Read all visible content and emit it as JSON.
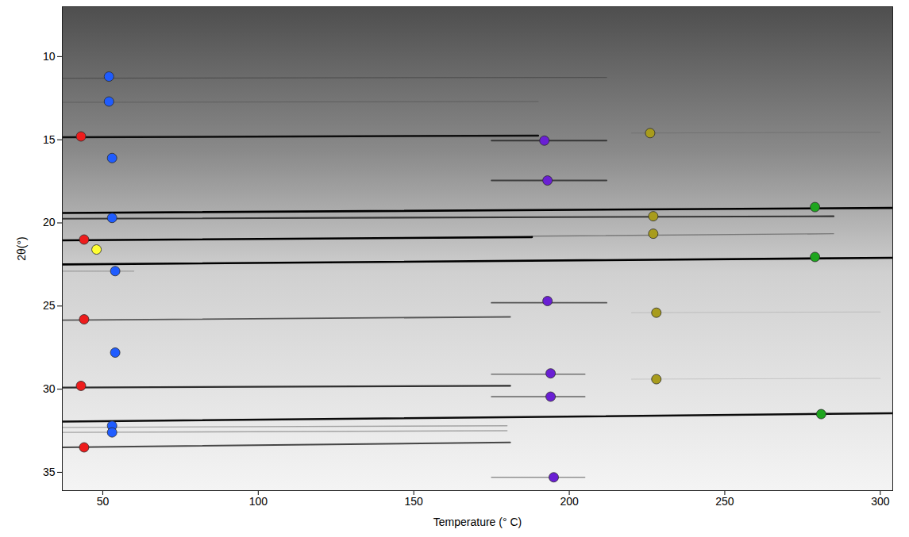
{
  "chart_data": {
    "type": "scatter",
    "xlabel": "Temperature (° C)",
    "ylabel": "2θ(°)",
    "xlim": [
      37,
      304
    ],
    "ylim": [
      36.1,
      7
    ],
    "xticks": [
      50,
      100,
      150,
      200,
      250,
      300
    ],
    "yticks": [
      10,
      15,
      20,
      25,
      30,
      35
    ],
    "marker": "circle",
    "series": [
      {
        "color": "#ee1c1c",
        "x": [
          43,
          44,
          44,
          43,
          44
        ],
        "values": [
          14.8,
          21.0,
          25.8,
          29.8,
          33.5
        ]
      },
      {
        "color": "#1f5cff",
        "x": [
          52,
          52,
          53,
          53,
          54,
          54,
          53,
          53
        ],
        "values": [
          11.2,
          12.7,
          16.1,
          19.7,
          22.9,
          27.8,
          32.2,
          32.6
        ]
      },
      {
        "color": "#ffff33",
        "x": [
          48
        ],
        "values": [
          21.6
        ]
      },
      {
        "color": "#6a1fd4",
        "x": [
          192,
          193,
          193,
          194,
          194,
          195
        ],
        "values": [
          15.05,
          17.45,
          24.7,
          29.05,
          30.45,
          35.3
        ]
      },
      {
        "color": "#a89c1c",
        "x": [
          226,
          227,
          227,
          228,
          228
        ],
        "values": [
          14.6,
          19.6,
          20.65,
          25.4,
          29.4
        ]
      },
      {
        "color": "#1ea51e",
        "x": [
          279,
          279,
          281
        ],
        "values": [
          19.05,
          22.05,
          31.5
        ]
      }
    ],
    "lines": [
      {
        "x": [
          37,
          212
        ],
        "values": [
          11.3,
          11.25
        ],
        "intensity": 0.25
      },
      {
        "x": [
          37,
          190
        ],
        "values": [
          12.75,
          12.7
        ],
        "intensity": 0.2
      },
      {
        "x": [
          37,
          190
        ],
        "values": [
          14.85,
          14.75
        ],
        "intensity": 0.9
      },
      {
        "x": [
          175,
          212
        ],
        "values": [
          15.05,
          15.05
        ],
        "intensity": 0.6
      },
      {
        "x": [
          175,
          212
        ],
        "values": [
          17.45,
          17.45
        ],
        "intensity": 0.6
      },
      {
        "x": [
          37,
          304
        ],
        "values": [
          19.4,
          19.1
        ],
        "intensity": 1.0
      },
      {
        "x": [
          37,
          285
        ],
        "values": [
          19.75,
          19.6
        ],
        "intensity": 0.7
      },
      {
        "x": [
          37,
          188
        ],
        "values": [
          21.05,
          20.85
        ],
        "intensity": 1.0
      },
      {
        "x": [
          188,
          285
        ],
        "values": [
          20.8,
          20.65
        ],
        "intensity": 0.35
      },
      {
        "x": [
          37,
          304
        ],
        "values": [
          22.5,
          22.1
        ],
        "intensity": 1.0
      },
      {
        "x": [
          37,
          60
        ],
        "values": [
          22.9,
          22.9
        ],
        "intensity": 0.25
      },
      {
        "x": [
          175,
          212
        ],
        "values": [
          24.8,
          24.8
        ],
        "intensity": 0.6
      },
      {
        "x": [
          37,
          181
        ],
        "values": [
          25.85,
          25.65
        ],
        "intensity": 0.6
      },
      {
        "x": [
          220,
          300
        ],
        "values": [
          25.4,
          25.35
        ],
        "intensity": 0.12
      },
      {
        "x": [
          175,
          205
        ],
        "values": [
          29.1,
          29.1
        ],
        "intensity": 0.5
      },
      {
        "x": [
          220,
          300
        ],
        "values": [
          29.4,
          29.35
        ],
        "intensity": 0.12
      },
      {
        "x": [
          37,
          181
        ],
        "values": [
          29.9,
          29.8
        ],
        "intensity": 0.8
      },
      {
        "x": [
          175,
          205
        ],
        "values": [
          30.45,
          30.45
        ],
        "intensity": 0.5
      },
      {
        "x": [
          37,
          304
        ],
        "values": [
          31.95,
          31.45
        ],
        "intensity": 0.95
      },
      {
        "x": [
          37,
          180
        ],
        "values": [
          32.3,
          32.2
        ],
        "intensity": 0.3
      },
      {
        "x": [
          37,
          180
        ],
        "values": [
          32.6,
          32.5
        ],
        "intensity": 0.3
      },
      {
        "x": [
          37,
          181
        ],
        "values": [
          33.5,
          33.2
        ],
        "intensity": 0.7
      },
      {
        "x": [
          175,
          205
        ],
        "values": [
          35.3,
          35.3
        ],
        "intensity": 0.4
      },
      {
        "x": [
          220,
          300
        ],
        "values": [
          14.6,
          14.55
        ],
        "intensity": 0.12
      }
    ]
  }
}
